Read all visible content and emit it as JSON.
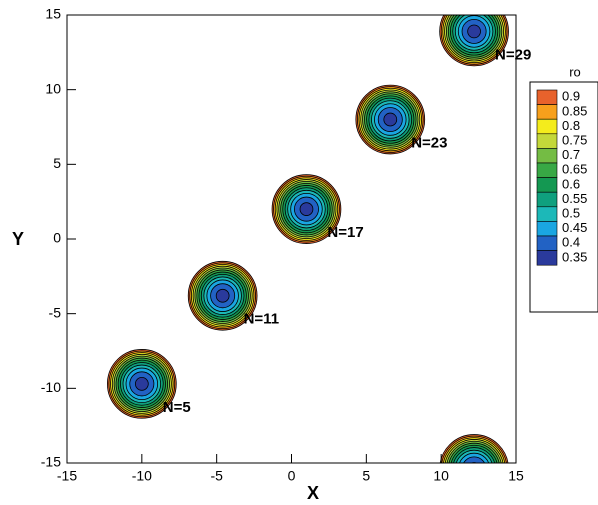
{
  "chart_data": {
    "type": "contour",
    "xlabel": "X",
    "ylabel": "Y",
    "xlim": [
      -15,
      15
    ],
    "ylim": [
      -15,
      15
    ],
    "xticks": [
      -15,
      -10,
      -5,
      0,
      5,
      10,
      15
    ],
    "yticks": [
      -15,
      -10,
      -5,
      0,
      5,
      10,
      15
    ],
    "legend_title": "ro",
    "levels": [
      {
        "value": 0.9,
        "color": "#e8622c"
      },
      {
        "value": 0.85,
        "color": "#f7a01c"
      },
      {
        "value": 0.8,
        "color": "#f4ec1c"
      },
      {
        "value": 0.75,
        "color": "#c4d83a"
      },
      {
        "value": 0.7,
        "color": "#74bc44"
      },
      {
        "value": 0.65,
        "color": "#38a845"
      },
      {
        "value": 0.6,
        "color": "#149852"
      },
      {
        "value": 0.55,
        "color": "#0fa07e"
      },
      {
        "value": 0.5,
        "color": "#1cb8b8"
      },
      {
        "value": 0.45,
        "color": "#1aa6e2"
      },
      {
        "value": 0.4,
        "color": "#2262c4"
      },
      {
        "value": 0.35,
        "color": "#2a3a9c"
      }
    ],
    "vortices": [
      {
        "x": -10,
        "y": -9.7,
        "label": "N=5"
      },
      {
        "x": -4.6,
        "y": -3.8,
        "label": "N=11"
      },
      {
        "x": 1.0,
        "y": 2.0,
        "label": "N=17"
      },
      {
        "x": 6.6,
        "y": 8.0,
        "label": "N=23"
      },
      {
        "x": 12.2,
        "y": 13.9,
        "label": "N=29"
      },
      {
        "x": 12.2,
        "y": -15.4
      }
    ]
  }
}
